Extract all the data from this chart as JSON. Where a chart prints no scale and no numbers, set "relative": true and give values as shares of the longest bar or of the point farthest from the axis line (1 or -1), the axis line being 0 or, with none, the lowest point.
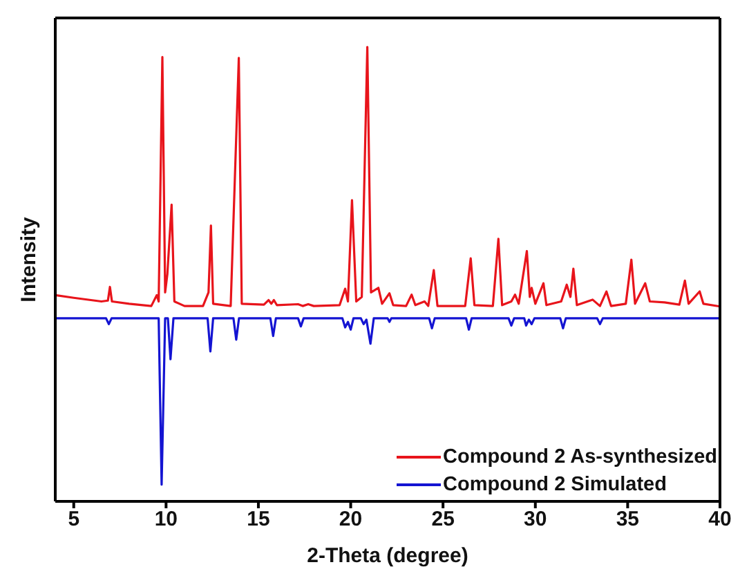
{
  "chart_data": {
    "type": "line",
    "relative": true,
    "xlabel": "2-Theta (degree)",
    "ylabel": "Intensity",
    "xlim": [
      4,
      40
    ],
    "xticks": [
      5,
      10,
      15,
      20,
      25,
      30,
      35,
      40
    ],
    "tick_labels": "x",
    "legend": "bottom right",
    "grid": false,
    "marker": "none",
    "line_style": "solid",
    "series": [
      {
        "name": "Compound 2 As-synthesized",
        "color": "#e8141b",
        "x": [
          4,
          5,
          6.5,
          6.85,
          6.96,
          7.07,
          8,
          9.2,
          9.5,
          9.6,
          9.8,
          9.95,
          10.07,
          10.3,
          10.45,
          11,
          12,
          12.3,
          12.43,
          12.55,
          13.5,
          13.94,
          14.1,
          15.3,
          15.55,
          15.7,
          15.84,
          16,
          17.15,
          17.4,
          17.7,
          18,
          19.4,
          19.7,
          19.85,
          20.07,
          20.3,
          20.6,
          20.9,
          21.1,
          21.5,
          21.7,
          22.1,
          22.3,
          23,
          23.3,
          23.5,
          24,
          24.2,
          24.5,
          24.7,
          26.2,
          26.5,
          26.7,
          27.7,
          28,
          28.2,
          28.7,
          28.9,
          29.1,
          29.54,
          29.7,
          29.8,
          30,
          30.44,
          30.6,
          31.4,
          31.7,
          31.9,
          32.06,
          32.25,
          33.1,
          33.5,
          33.85,
          34.1,
          34.9,
          35.2,
          35.4,
          35.95,
          36.2,
          37,
          37.8,
          38.1,
          38.3,
          38.9,
          39.1,
          40
        ],
        "values": [
          0.454,
          0.448,
          0.44,
          0.442,
          0.472,
          0.44,
          0.435,
          0.43,
          0.454,
          0.44,
          0.978,
          0.46,
          0.5,
          0.653,
          0.44,
          0.43,
          0.43,
          0.46,
          0.607,
          0.435,
          0.43,
          0.976,
          0.435,
          0.433,
          0.443,
          0.435,
          0.443,
          0.432,
          0.434,
          0.43,
          0.434,
          0.43,
          0.432,
          0.468,
          0.44,
          0.663,
          0.44,
          0.45,
          1.0,
          0.46,
          0.47,
          0.435,
          0.458,
          0.432,
          0.43,
          0.455,
          0.432,
          0.44,
          0.43,
          0.509,
          0.43,
          0.43,
          0.535,
          0.432,
          0.43,
          0.578,
          0.432,
          0.44,
          0.455,
          0.435,
          0.551,
          0.45,
          0.47,
          0.435,
          0.48,
          0.432,
          0.44,
          0.477,
          0.45,
          0.512,
          0.432,
          0.444,
          0.43,
          0.462,
          0.43,
          0.435,
          0.532,
          0.435,
          0.48,
          0.44,
          0.438,
          0.433,
          0.486,
          0.435,
          0.462,
          0.435,
          0.429
        ]
      },
      {
        "name": "Compound 2 Simulated",
        "color": "#1414d2",
        "x": [
          4,
          6.75,
          6.9,
          7.05,
          9.6,
          9.76,
          9.95,
          10.1,
          10.24,
          10.4,
          12.25,
          12.4,
          12.55,
          13.65,
          13.8,
          13.95,
          15.65,
          15.8,
          15.95,
          17.15,
          17.3,
          17.45,
          19.55,
          19.7,
          19.85,
          20,
          20.15,
          20.55,
          20.7,
          20.85,
          21.07,
          21.25,
          22,
          22.1,
          22.2,
          24.25,
          24.4,
          24.55,
          26.25,
          26.4,
          26.55,
          28.55,
          28.7,
          28.85,
          29.4,
          29.5,
          29.65,
          29.8,
          29.95,
          31.35,
          31.5,
          31.65,
          33.35,
          33.5,
          33.65,
          40
        ],
        "values": [
          0.403,
          0.403,
          0.39,
          0.403,
          0.403,
          0.037,
          0.403,
          0.403,
          0.313,
          0.403,
          0.403,
          0.33,
          0.403,
          0.403,
          0.356,
          0.403,
          0.403,
          0.364,
          0.403,
          0.403,
          0.385,
          0.403,
          0.403,
          0.383,
          0.395,
          0.378,
          0.403,
          0.403,
          0.39,
          0.4,
          0.347,
          0.403,
          0.403,
          0.395,
          0.403,
          0.403,
          0.381,
          0.403,
          0.403,
          0.378,
          0.403,
          0.403,
          0.387,
          0.403,
          0.403,
          0.387,
          0.4,
          0.39,
          0.403,
          0.403,
          0.381,
          0.403,
          0.403,
          0.39,
          0.403,
          0.403
        ]
      }
    ]
  }
}
